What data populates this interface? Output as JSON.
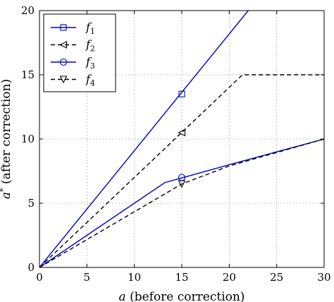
{
  "chart_data": {
    "type": "line",
    "xlabel": "a (before correction)",
    "ylabel": "a* (after correction)",
    "xlim": [
      0,
      30
    ],
    "ylim": [
      0,
      20
    ],
    "xticks": [
      0,
      5,
      10,
      15,
      20,
      25,
      30
    ],
    "yticks": [
      0,
      5,
      10,
      15,
      20
    ],
    "grid": true,
    "legend": "top-left",
    "series": [
      {
        "name": "f1",
        "color": "#0000cc",
        "dash": "solid",
        "marker": "square",
        "points": [
          [
            0,
            0
          ],
          [
            22,
            20
          ]
        ],
        "marker_at": [
          15,
          13.5
        ]
      },
      {
        "name": "f2",
        "color": "#000000",
        "dash": "dashed",
        "marker": "triangle-left",
        "points": [
          [
            0,
            0
          ],
          [
            21.4,
            15
          ],
          [
            30,
            15
          ]
        ],
        "marker_at": [
          15,
          10.5
        ]
      },
      {
        "name": "f3",
        "color": "#0000cc",
        "dash": "solid",
        "marker": "circle",
        "points": [
          [
            0,
            0
          ],
          [
            13.2,
            6.6
          ],
          [
            20,
            8
          ],
          [
            30,
            10
          ]
        ],
        "marker_at": [
          15,
          7
        ]
      },
      {
        "name": "f4",
        "color": "#000000",
        "dash": "dashed",
        "marker": "triangle-down",
        "points": [
          [
            0,
            0
          ],
          [
            15,
            6.5
          ],
          [
            20,
            7.9
          ],
          [
            30,
            10
          ]
        ],
        "marker_at": [
          15,
          6.5
        ]
      }
    ]
  }
}
